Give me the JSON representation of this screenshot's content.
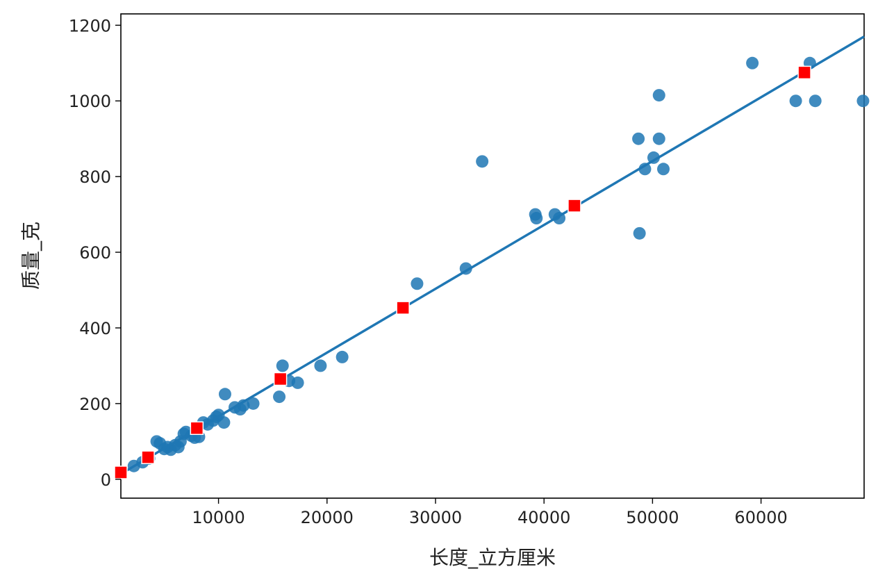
{
  "chart_data": {
    "type": "scatter",
    "title": "",
    "xlabel": "长度_立方厘米",
    "ylabel": "质量_克",
    "xlim": [
      1000,
      69500
    ],
    "ylim": [
      -50,
      1230
    ],
    "x_ticks": [
      10000,
      20000,
      30000,
      40000,
      50000,
      60000
    ],
    "y_ticks": [
      0,
      200,
      400,
      600,
      800,
      1000,
      1200
    ],
    "grid": false,
    "legend": "none",
    "series": [
      {
        "kind": "scatter",
        "marker": "circle",
        "color": "#1f77b4",
        "points": [
          [
            2200,
            35
          ],
          [
            3000,
            45
          ],
          [
            3600,
            55
          ],
          [
            4300,
            100
          ],
          [
            4600,
            95
          ],
          [
            5000,
            80
          ],
          [
            5300,
            85
          ],
          [
            5600,
            78
          ],
          [
            6000,
            90
          ],
          [
            6300,
            85
          ],
          [
            6500,
            100
          ],
          [
            6800,
            120
          ],
          [
            7000,
            125
          ],
          [
            7500,
            115
          ],
          [
            7800,
            110
          ],
          [
            8200,
            112
          ],
          [
            8600,
            150
          ],
          [
            9000,
            145
          ],
          [
            9500,
            155
          ],
          [
            9800,
            165
          ],
          [
            10000,
            170
          ],
          [
            10500,
            150
          ],
          [
            10600,
            225
          ],
          [
            11500,
            190
          ],
          [
            12000,
            185
          ],
          [
            12300,
            195
          ],
          [
            13200,
            200
          ],
          [
            15600,
            218
          ],
          [
            15900,
            300
          ],
          [
            16500,
            260
          ],
          [
            17300,
            255
          ],
          [
            19400,
            300
          ],
          [
            21400,
            323
          ],
          [
            28300,
            517
          ],
          [
            32800,
            557
          ],
          [
            34300,
            840
          ],
          [
            39200,
            700
          ],
          [
            39300,
            690
          ],
          [
            41000,
            700
          ],
          [
            41400,
            690
          ],
          [
            48700,
            900
          ],
          [
            48800,
            650
          ],
          [
            49300,
            820
          ],
          [
            50100,
            850
          ],
          [
            50600,
            900
          ],
          [
            50600,
            1015
          ],
          [
            51000,
            820
          ],
          [
            59200,
            1100
          ],
          [
            63200,
            1000
          ],
          [
            64500,
            1100
          ],
          [
            65000,
            1000
          ],
          [
            69400,
            1000
          ]
        ]
      },
      {
        "kind": "scatter",
        "marker": "square",
        "color": "#ff0000",
        "points": [
          [
            1000,
            18
          ],
          [
            3500,
            58
          ],
          [
            8000,
            135
          ],
          [
            15700,
            265
          ],
          [
            27000,
            453
          ],
          [
            42800,
            723
          ],
          [
            64000,
            1075
          ]
        ]
      },
      {
        "kind": "line",
        "color": "#1f77b4",
        "x": [
          1000,
          69500
        ],
        "y": [
          14,
          1170
        ]
      }
    ]
  }
}
